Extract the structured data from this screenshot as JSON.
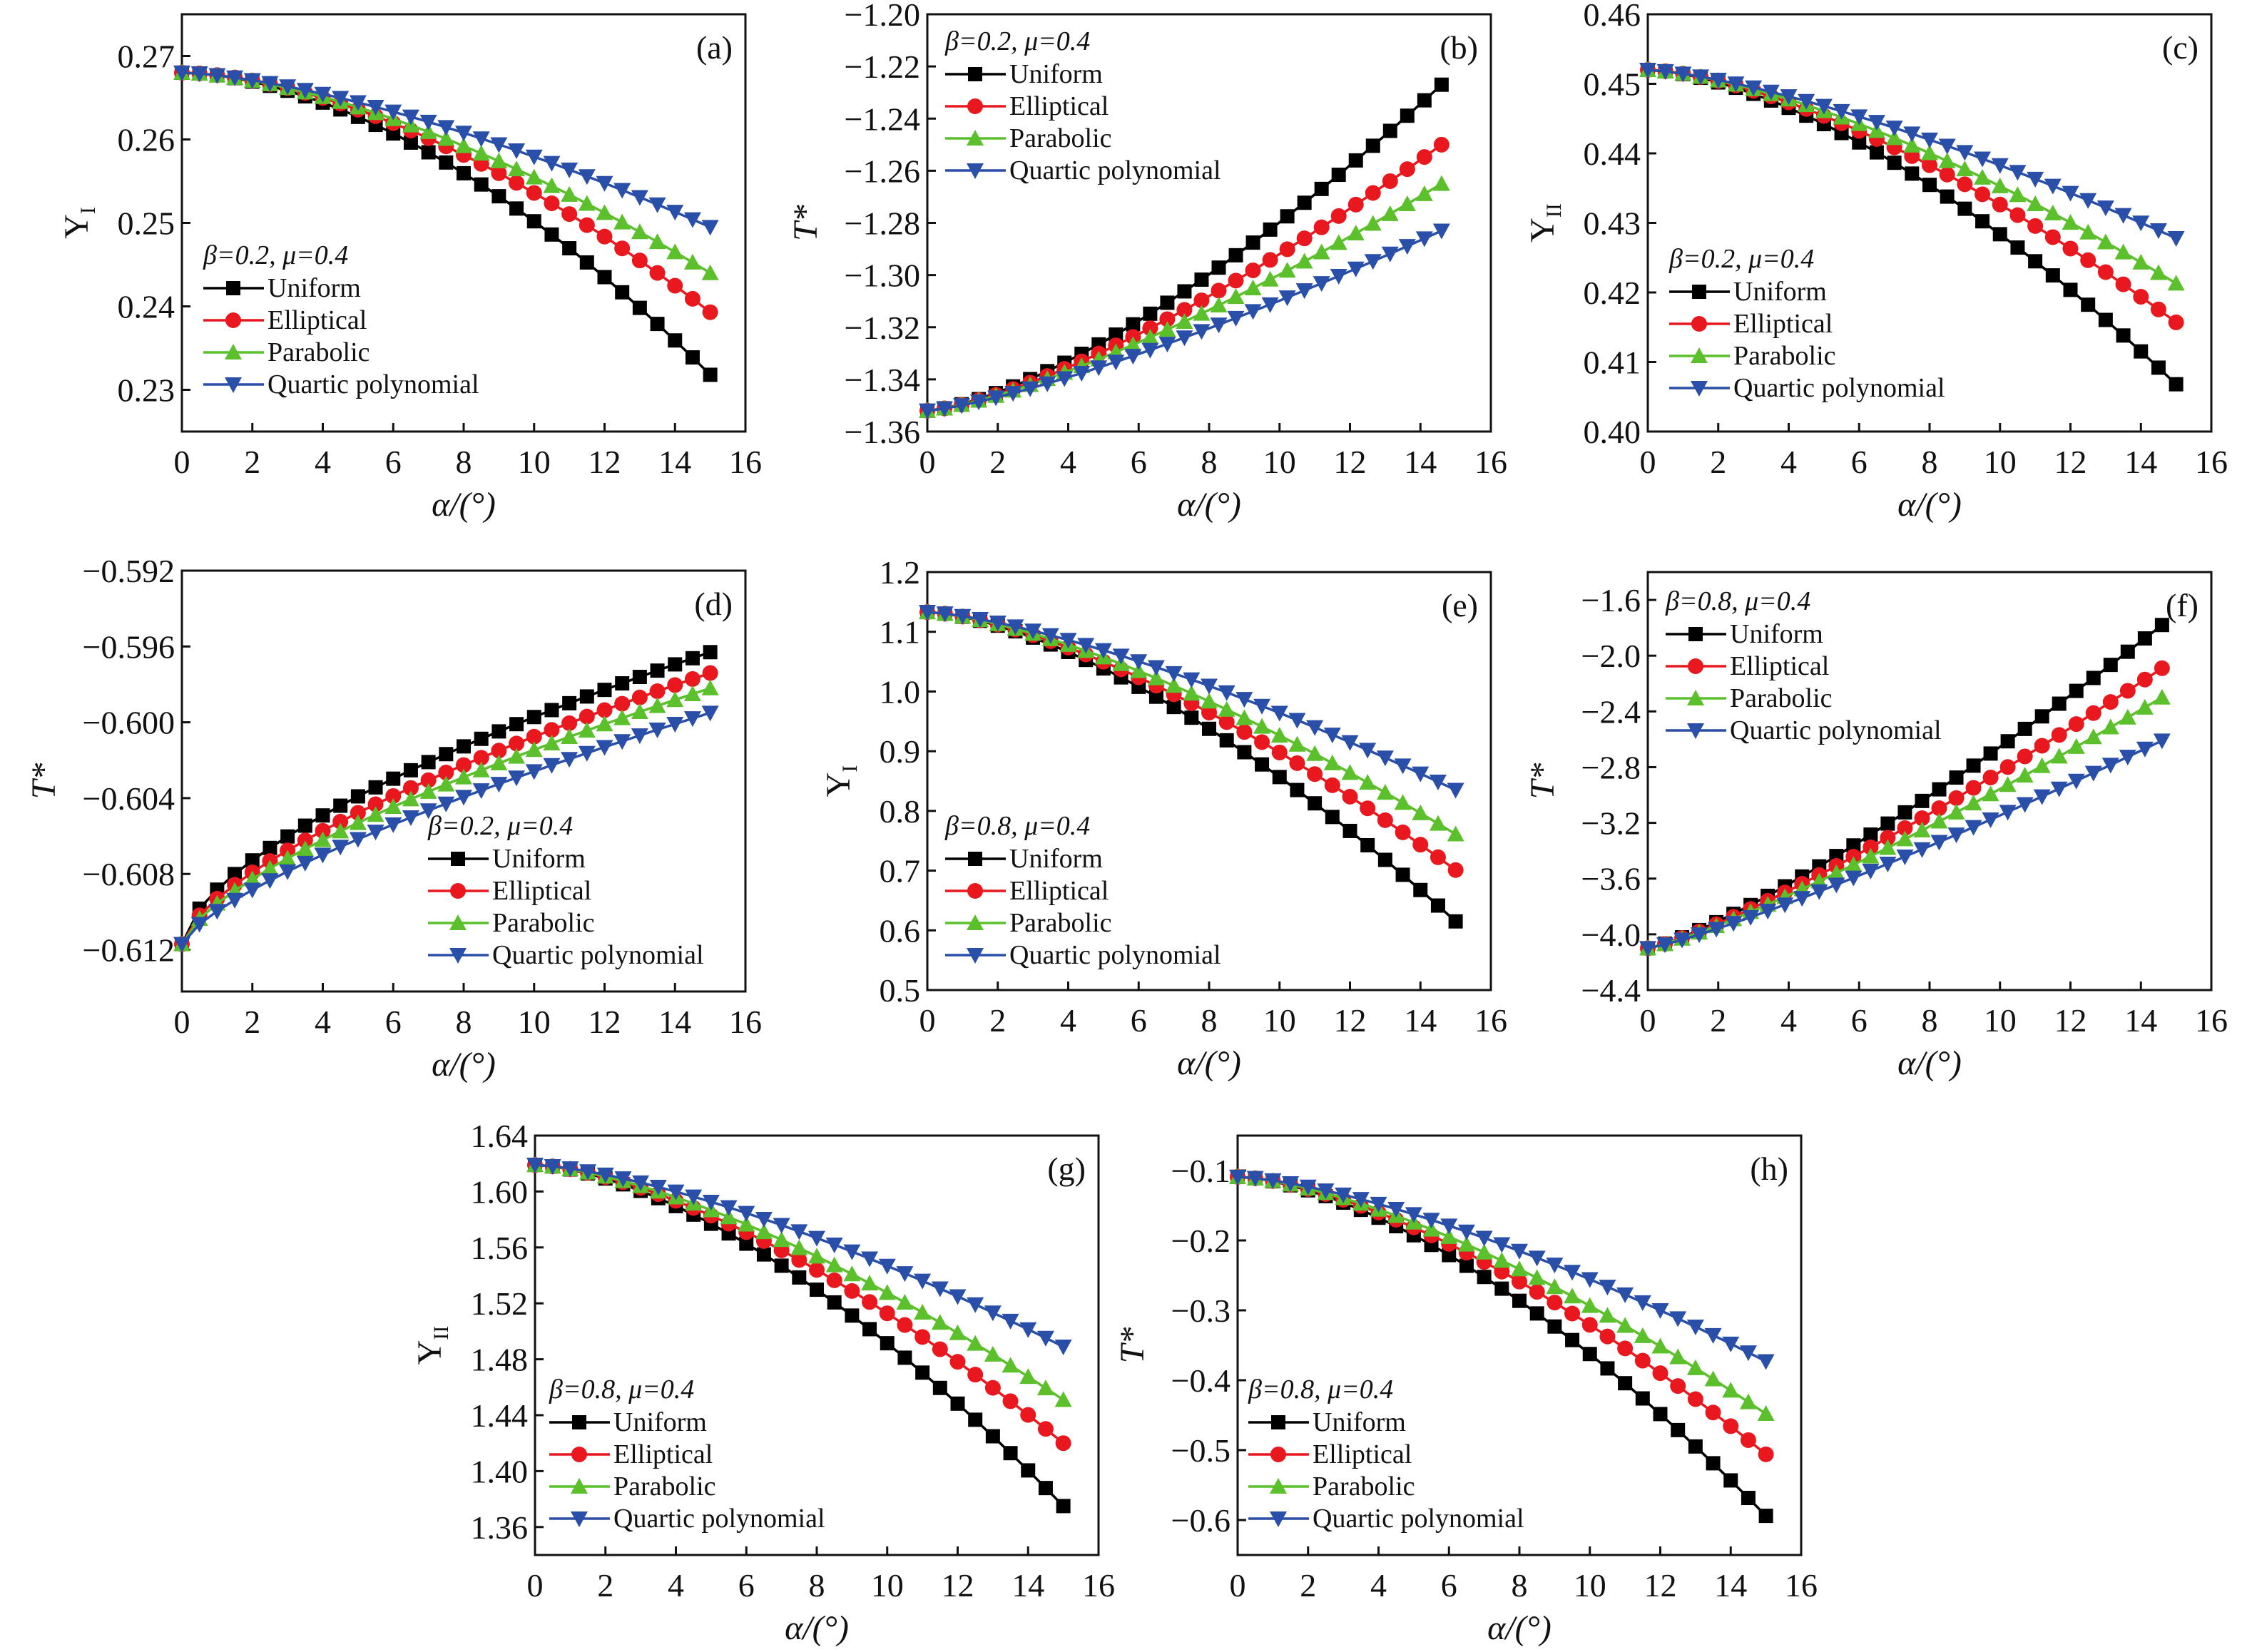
{
  "figure": {
    "legend_entries": [
      "Uniform",
      "Elliptical",
      "Parabolic",
      "Quartic polynomial"
    ],
    "series_colors": {
      "Uniform": "#000000",
      "Elliptical": "#e8181e",
      "Parabolic": "#5cc02c",
      "Quartic polynomial": "#2a4fa8"
    },
    "markers": {
      "Uniform": "square",
      "Elliptical": "circle",
      "Parabolic": "triangle-up",
      "Quartic polynomial": "triangle-down"
    }
  },
  "chart_data": [
    {
      "id": "a",
      "type": "line",
      "panel_label": "(a)",
      "annotation": "β=0.2, μ=0.4",
      "xlabel": "α/(°)",
      "ylabel": "Y_I",
      "xlim": [
        0,
        16
      ],
      "ylim": [
        0.225,
        0.275
      ],
      "xticks": [
        "0",
        "2",
        "4",
        "6",
        "8",
        "10",
        "12",
        "14",
        "16"
      ],
      "yticks": [
        "0.23",
        "0.24",
        "0.25",
        "0.26",
        "0.27"
      ],
      "ytick_values": [
        0.23,
        0.24,
        0.25,
        0.26,
        0.27
      ],
      "legend_position": "bottom-left",
      "x": {
        "start": 0,
        "end": 15,
        "step": 0.5
      },
      "series": [
        {
          "name": "Uniform",
          "start": 0.268,
          "end": 0.2318,
          "shape": 1.75
        },
        {
          "name": "Elliptical",
          "start": 0.268,
          "end": 0.2393,
          "shape": 1.7
        },
        {
          "name": "Parabolic",
          "start": 0.268,
          "end": 0.244,
          "shape": 1.6
        },
        {
          "name": "Quartic polynomial",
          "start": 0.268,
          "end": 0.2495,
          "shape": 1.5
        }
      ]
    },
    {
      "id": "b",
      "type": "line",
      "panel_label": "(b)",
      "annotation": "β=0.2, μ=0.4",
      "xlabel": "α/(°)",
      "ylabel": "T*",
      "xlim": [
        0,
        16
      ],
      "ylim": [
        -1.36,
        -1.2
      ],
      "xticks": [
        "0",
        "2",
        "4",
        "6",
        "8",
        "10",
        "12",
        "14",
        "16"
      ],
      "yticks": [
        "−1.36",
        "−1.34",
        "−1.32",
        "−1.30",
        "−1.28",
        "−1.26",
        "−1.24",
        "−1.22",
        "−1.20"
      ],
      "ytick_values": [
        -1.36,
        -1.34,
        -1.32,
        -1.3,
        -1.28,
        -1.26,
        -1.24,
        -1.22,
        -1.2
      ],
      "legend_position": "top-left",
      "x": {
        "start": 0,
        "end": 14.6,
        "step": 0.4867
      },
      "series": [
        {
          "name": "Uniform",
          "start": -1.352,
          "end": -1.227,
          "shape": 1.45
        },
        {
          "name": "Elliptical",
          "start": -1.352,
          "end": -1.25,
          "shape": 1.4
        },
        {
          "name": "Parabolic",
          "start": -1.352,
          "end": -1.265,
          "shape": 1.35
        },
        {
          "name": "Quartic polynomial",
          "start": -1.352,
          "end": -1.283,
          "shape": 1.3
        }
      ]
    },
    {
      "id": "c",
      "type": "line",
      "panel_label": "(c)",
      "annotation": "β=0.2, μ=0.4",
      "xlabel": "α/(°)",
      "ylabel": "Y_II",
      "xlim": [
        0,
        16
      ],
      "ylim": [
        0.4,
        0.46
      ],
      "xticks": [
        "0",
        "2",
        "4",
        "6",
        "8",
        "10",
        "12",
        "14",
        "16"
      ],
      "yticks": [
        "0.40",
        "0.41",
        "0.42",
        "0.43",
        "0.44",
        "0.45",
        "0.46"
      ],
      "ytick_values": [
        0.4,
        0.41,
        0.42,
        0.43,
        0.44,
        0.45,
        0.46
      ],
      "legend_position": "bottom-left",
      "x": {
        "start": 0,
        "end": 15,
        "step": 0.5
      },
      "series": [
        {
          "name": "Uniform",
          "start": 0.452,
          "end": 0.4068,
          "shape": 1.6
        },
        {
          "name": "Elliptical",
          "start": 0.452,
          "end": 0.4157,
          "shape": 1.55
        },
        {
          "name": "Parabolic",
          "start": 0.452,
          "end": 0.4213,
          "shape": 1.5
        },
        {
          "name": "Quartic polynomial",
          "start": 0.452,
          "end": 0.4278,
          "shape": 1.4
        }
      ]
    },
    {
      "id": "d",
      "type": "line",
      "panel_label": "(d)",
      "annotation": "β=0.2, μ=0.4",
      "xlabel": "α/(°)",
      "ylabel": "T*",
      "xlim": [
        0,
        16
      ],
      "ylim": [
        -0.6142,
        -0.592
      ],
      "xticks": [
        "0",
        "2",
        "4",
        "6",
        "8",
        "10",
        "12",
        "14",
        "16"
      ],
      "yticks": [
        "−0.612",
        "−0.608",
        "−0.604",
        "−0.600",
        "−0.596",
        "−0.592"
      ],
      "ytick_values": [
        -0.612,
        -0.608,
        -0.604,
        -0.6,
        -0.596,
        -0.592
      ],
      "legend_position": "bottom-right",
      "x": {
        "start": 0,
        "end": 15,
        "step": 0.5
      },
      "series": [
        {
          "name": "Uniform",
          "start": -0.6117,
          "end": -0.5963,
          "shape": 0.62
        },
        {
          "name": "Elliptical",
          "start": -0.6117,
          "end": -0.5974,
          "shape": 0.66
        },
        {
          "name": "Parabolic",
          "start": -0.6117,
          "end": -0.5982,
          "shape": 0.68
        },
        {
          "name": "Quartic polynomial",
          "start": -0.6117,
          "end": -0.5995,
          "shape": 0.72
        }
      ]
    },
    {
      "id": "e",
      "type": "line",
      "panel_label": "(e)",
      "annotation": "β=0.8, μ=0.4",
      "xlabel": "α/(°)",
      "ylabel": "Y_I",
      "xlim": [
        0,
        16
      ],
      "ylim": [
        0.5,
        1.2
      ],
      "xticks": [
        "0",
        "2",
        "4",
        "6",
        "8",
        "10",
        "12",
        "14",
        "16"
      ],
      "yticks": [
        "0.5",
        "0.6",
        "0.7",
        "0.8",
        "0.9",
        "1.0",
        "1.1",
        "1.2"
      ],
      "ytick_values": [
        0.5,
        0.6,
        0.7,
        0.8,
        0.9,
        1.0,
        1.1,
        1.2
      ],
      "legend_position": "bottom-left",
      "x": {
        "start": 0,
        "end": 15,
        "step": 0.5
      },
      "series": [
        {
          "name": "Uniform",
          "start": 1.133,
          "end": 0.615,
          "shape": 1.55
        },
        {
          "name": "Elliptical",
          "start": 1.133,
          "end": 0.701,
          "shape": 1.5
        },
        {
          "name": "Parabolic",
          "start": 1.133,
          "end": 0.761,
          "shape": 1.45
        },
        {
          "name": "Quartic polynomial",
          "start": 1.133,
          "end": 0.835,
          "shape": 1.4
        }
      ]
    },
    {
      "id": "f",
      "type": "line",
      "panel_label": "(f)",
      "annotation": "β=0.8, μ=0.4",
      "xlabel": "α/(°)",
      "ylabel": "T*",
      "xlim": [
        0,
        16
      ],
      "ylim": [
        -4.4,
        -1.4
      ],
      "xticks": [
        "0",
        "2",
        "4",
        "6",
        "8",
        "10",
        "12",
        "14",
        "16"
      ],
      "yticks": [
        "−4.4",
        "−4.0",
        "−3.6",
        "−3.2",
        "−2.8",
        "−2.4",
        "−2.0",
        "−1.6"
      ],
      "ytick_values": [
        -4.4,
        -4.0,
        -3.6,
        -3.2,
        -2.8,
        -2.4,
        -2.0,
        -1.6
      ],
      "legend_position": "top-left",
      "x": {
        "start": 0,
        "end": 14.6,
        "step": 0.4867
      },
      "series": [
        {
          "name": "Uniform",
          "start": -4.1,
          "end": -1.78,
          "shape": 1.25
        },
        {
          "name": "Elliptical",
          "start": -4.1,
          "end": -2.09,
          "shape": 1.22
        },
        {
          "name": "Parabolic",
          "start": -4.1,
          "end": -2.3,
          "shape": 1.2
        },
        {
          "name": "Quartic polynomial",
          "start": -4.1,
          "end": -2.61,
          "shape": 1.18
        }
      ]
    },
    {
      "id": "g",
      "type": "line",
      "panel_label": "(g)",
      "annotation": "β=0.8, μ=0.4",
      "xlabel": "α/(°)",
      "ylabel": "Y_II",
      "xlim": [
        0,
        16
      ],
      "ylim": [
        1.34,
        1.64
      ],
      "xticks": [
        "0",
        "2",
        "4",
        "6",
        "8",
        "10",
        "12",
        "14",
        "16"
      ],
      "yticks": [
        "1.36",
        "1.40",
        "1.44",
        "1.48",
        "1.52",
        "1.56",
        "1.60",
        "1.64"
      ],
      "ytick_values": [
        1.36,
        1.4,
        1.44,
        1.48,
        1.52,
        1.56,
        1.6,
        1.64
      ],
      "legend_position": "bottom-left",
      "x": {
        "start": 0,
        "end": 15,
        "step": 0.5
      },
      "series": [
        {
          "name": "Uniform",
          "start": 1.619,
          "end": 1.375,
          "shape": 1.6
        },
        {
          "name": "Elliptical",
          "start": 1.619,
          "end": 1.42,
          "shape": 1.55
        },
        {
          "name": "Parabolic",
          "start": 1.619,
          "end": 1.451,
          "shape": 1.5
        },
        {
          "name": "Quartic polynomial",
          "start": 1.619,
          "end": 1.489,
          "shape": 1.45
        }
      ]
    },
    {
      "id": "h",
      "type": "line",
      "panel_label": "(h)",
      "annotation": "β=0.8, μ=0.4",
      "xlabel": "α/(°)",
      "ylabel": "T*",
      "xlim": [
        0,
        16
      ],
      "ylim": [
        -0.65,
        -0.05
      ],
      "xticks": [
        "0",
        "2",
        "4",
        "6",
        "8",
        "10",
        "12",
        "14",
        "16"
      ],
      "yticks": [
        "−0.6",
        "−0.5",
        "−0.4",
        "−0.3",
        "−0.2",
        "−0.1"
      ],
      "ytick_values": [
        -0.6,
        -0.5,
        -0.4,
        -0.3,
        -0.2,
        -0.1
      ],
      "legend_position": "bottom-left",
      "x": {
        "start": 0,
        "end": 15,
        "step": 0.5
      },
      "series": [
        {
          "name": "Uniform",
          "start": -0.109,
          "end": -0.594,
          "shape": 1.6
        },
        {
          "name": "Elliptical",
          "start": -0.109,
          "end": -0.506,
          "shape": 1.55
        },
        {
          "name": "Parabolic",
          "start": -0.109,
          "end": -0.448,
          "shape": 1.5
        },
        {
          "name": "Quartic polynomial",
          "start": -0.109,
          "end": -0.373,
          "shape": 1.45
        }
      ]
    }
  ]
}
